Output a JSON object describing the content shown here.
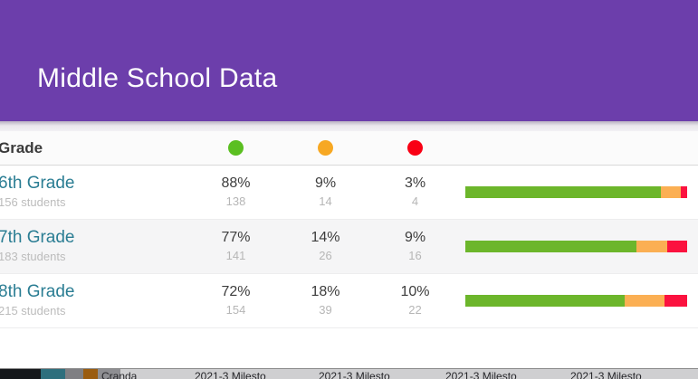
{
  "header": {
    "title": "Middle School Data"
  },
  "colors": {
    "banner_purple": "#6C3EAB",
    "dot_green": "#5BBF21",
    "dot_orange": "#F7A823",
    "dot_red": "#F90014",
    "bar_green": "#6CB62B",
    "bar_orange": "#FBAF53",
    "bar_red": "#FB123F",
    "grade_link_teal": "#2A7D93"
  },
  "table": {
    "grade_header": "Grade",
    "legend": [
      "green-dot",
      "orange-dot",
      "red-dot"
    ],
    "rows": [
      {
        "grade": "6th Grade",
        "students": "156 students",
        "green": {
          "pct": "88%",
          "count": "138"
        },
        "orange": {
          "pct": "9%",
          "count": "14"
        },
        "red": {
          "pct": "3%",
          "count": "4"
        },
        "bar": {
          "green": "88%",
          "orange": "9%",
          "red": "3%"
        }
      },
      {
        "grade": "7th Grade",
        "students": "183 students",
        "green": {
          "pct": "77%",
          "count": "141"
        },
        "orange": {
          "pct": "14%",
          "count": "26"
        },
        "red": {
          "pct": "9%",
          "count": "16"
        },
        "bar": {
          "green": "77%",
          "orange": "14%",
          "red": "9%"
        }
      },
      {
        "grade": "8th Grade",
        "students": "215 students",
        "green": {
          "pct": "72%",
          "count": "154"
        },
        "orange": {
          "pct": "18%",
          "count": "39"
        },
        "red": {
          "pct": "10%",
          "count": "22"
        },
        "bar": {
          "green": "72%",
          "orange": "18%",
          "red": "10%"
        }
      }
    ]
  },
  "chart_data": {
    "type": "bar",
    "subtype": "horizontal-stacked",
    "title": "Middle School Data",
    "categories": [
      "6th Grade",
      "7th Grade",
      "8th Grade"
    ],
    "category_totals_students": [
      156,
      183,
      215
    ],
    "series": [
      {
        "name": "green",
        "values_pct": [
          88,
          77,
          72
        ],
        "counts": [
          138,
          141,
          154
        ],
        "color": "#6CB62B"
      },
      {
        "name": "orange",
        "values_pct": [
          9,
          14,
          18
        ],
        "counts": [
          14,
          26,
          39
        ],
        "color": "#FBAF53"
      },
      {
        "name": "red",
        "values_pct": [
          3,
          9,
          10
        ],
        "counts": [
          4,
          16,
          22
        ],
        "color": "#FB123F"
      }
    ],
    "xlim": [
      0,
      100
    ],
    "legend_position": "column-headers",
    "grid": false
  },
  "under_strip": {
    "block_colors": [
      "#15181B",
      "#2E6F7D",
      "#7F7F83",
      "#9A5C10",
      "#8E8E92"
    ],
    "fragments": [
      "Cranda",
      "2021-3 Milesto",
      "2021-3 Milesto",
      "2021-3 Milesto",
      "2021-3 Milesto"
    ]
  }
}
